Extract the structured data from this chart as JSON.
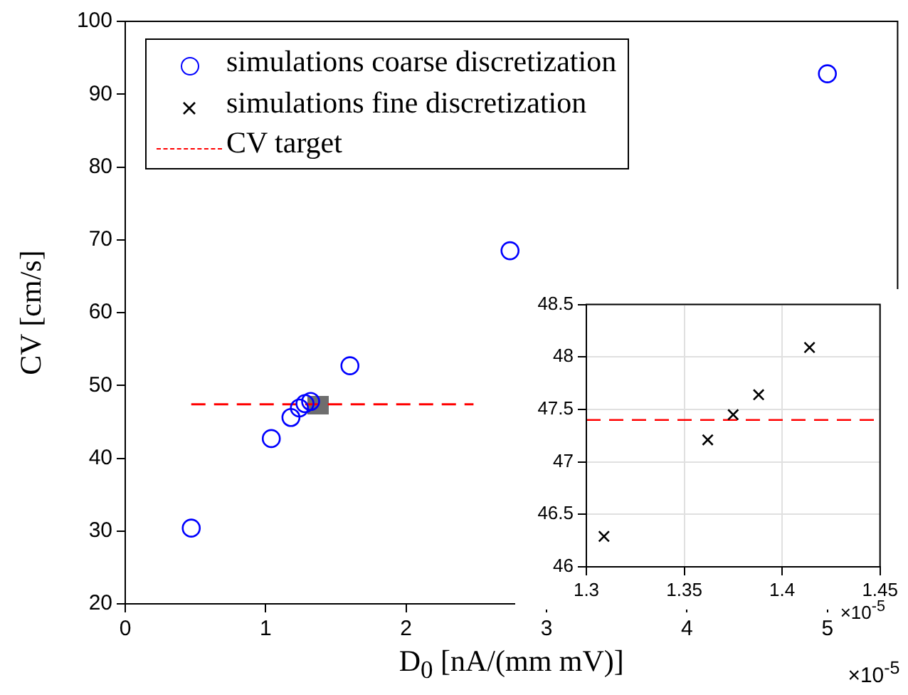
{
  "chart_data": [
    {
      "type": "scatter",
      "xlabel": "D$_{0}$ [nA/(mm mV)]",
      "ylabel": "CV [cm/s]",
      "xlim": [
        0,
        5.5
      ],
      "xticks": [
        0,
        1,
        2,
        3,
        4,
        5
      ],
      "ylim": [
        20,
        100
      ],
      "yticks": [
        20,
        30,
        40,
        50,
        60,
        70,
        80,
        90,
        100
      ],
      "grid": false,
      "legend": "top left",
      "annotations": [
        "×10$^{-5}$"
      ],
      "series": [
        {
          "name": "simulations coarse discretization",
          "color": "#0000ff",
          "marker": "circle",
          "x": [
            0.47,
            1.04,
            1.18,
            1.24,
            1.28,
            1.32,
            1.6,
            2.74,
            5.0
          ],
          "values": [
            30.4,
            42.7,
            45.6,
            46.9,
            47.5,
            47.8,
            52.7,
            68.5,
            92.8
          ]
        },
        {
          "name": "CV target",
          "type": "line",
          "color": "#ff0000",
          "line_style": "dashed",
          "marker": "none",
          "x": [
            0.47,
            2.48
          ],
          "values": [
            47.4,
            47.4
          ]
        }
      ]
    },
    {
      "type": "scatter",
      "xlim": [
        1.3,
        1.45
      ],
      "xticks": [
        1.3,
        1.35,
        1.4,
        1.45
      ],
      "ylim": [
        46,
        48.5
      ],
      "yticks": [
        46,
        46.5,
        47,
        47.5,
        48,
        48.5
      ],
      "grid": true,
      "annotations": [
        "×10$^{-5}$"
      ],
      "ref_lines": [
        {
          "axis": "y",
          "value": 47.4,
          "color": "#ff0000",
          "line_style": "dashed"
        }
      ],
      "series": [
        {
          "name": "simulations fine discretization",
          "color": "#000000",
          "marker": "cross",
          "x": [
            1.309,
            1.362,
            1.375,
            1.388,
            1.414
          ],
          "values": [
            46.29,
            47.21,
            47.45,
            47.64,
            48.09
          ]
        }
      ]
    }
  ]
}
